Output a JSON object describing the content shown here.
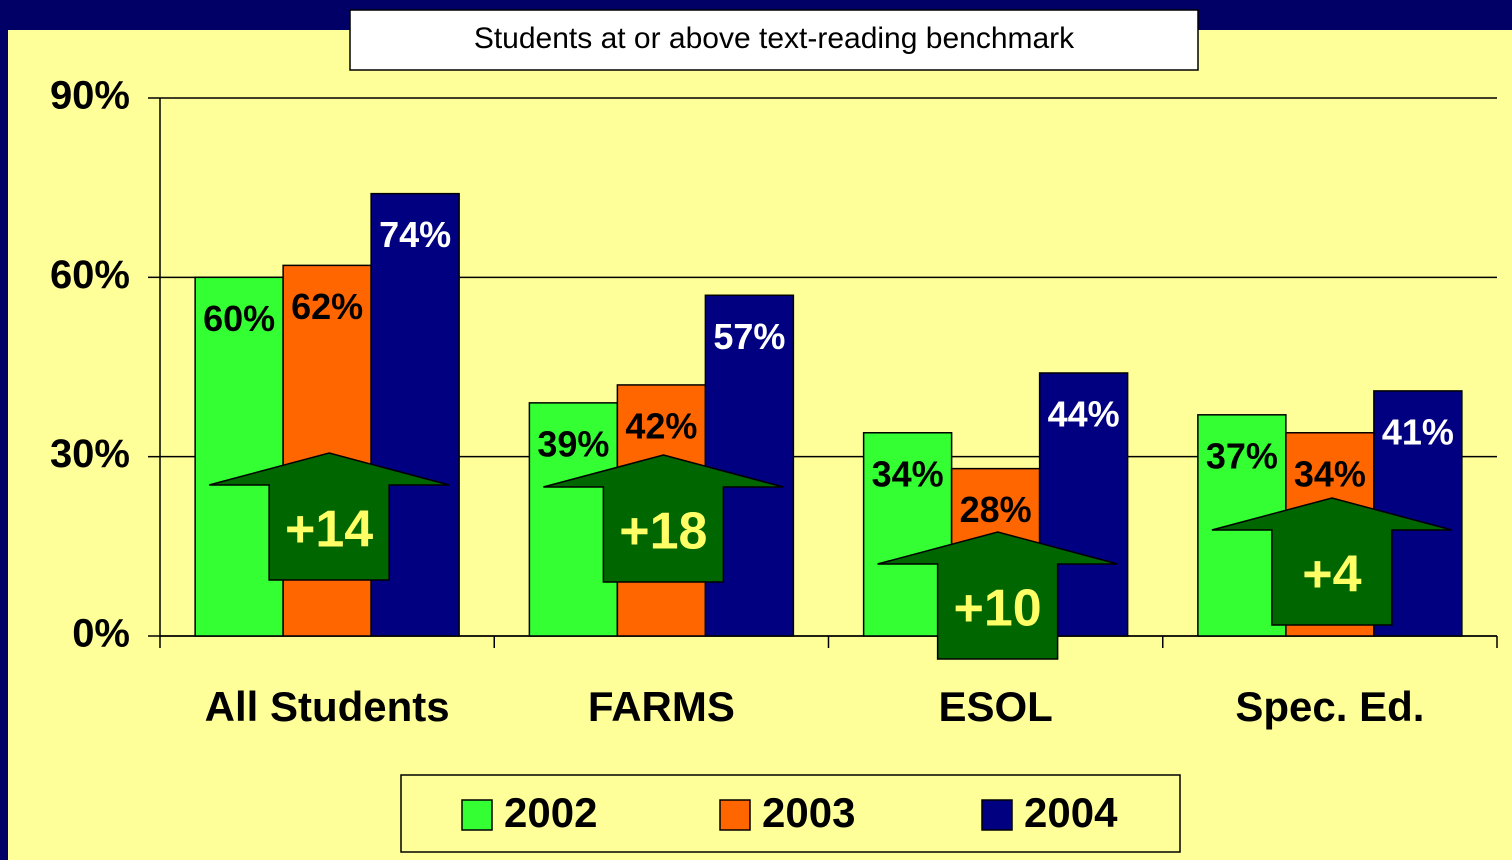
{
  "chart_data": {
    "type": "bar",
    "title": "Students at or above text-reading benchmark",
    "categories": [
      "All Students",
      "FARMS",
      "ESOL",
      "Spec. Ed."
    ],
    "series": [
      {
        "name": "2002",
        "color": "#33ff33",
        "values": [
          60,
          39,
          34,
          37
        ],
        "value_labels": [
          "60%",
          "39%",
          "34%",
          "37%"
        ]
      },
      {
        "name": "2003",
        "color": "#ff6600",
        "values": [
          62,
          42,
          28,
          34
        ],
        "value_labels": [
          "62%",
          "42%",
          "28%",
          "34%"
        ]
      },
      {
        "name": "2004",
        "color": "#000080",
        "values": [
          74,
          57,
          44,
          41
        ],
        "value_labels": [
          "74%",
          "57%",
          "44%",
          "41%"
        ]
      }
    ],
    "annotations": [
      "+14",
      "+18",
      "+10",
      "+4"
    ],
    "ylim": [
      0,
      90
    ],
    "yticks": [
      {
        "value": 0,
        "label": "0%"
      },
      {
        "value": 30,
        "label": "30%"
      },
      {
        "value": 60,
        "label": "60%"
      },
      {
        "value": 90,
        "label": "90%"
      }
    ],
    "grid": true,
    "legend": "bottom"
  }
}
